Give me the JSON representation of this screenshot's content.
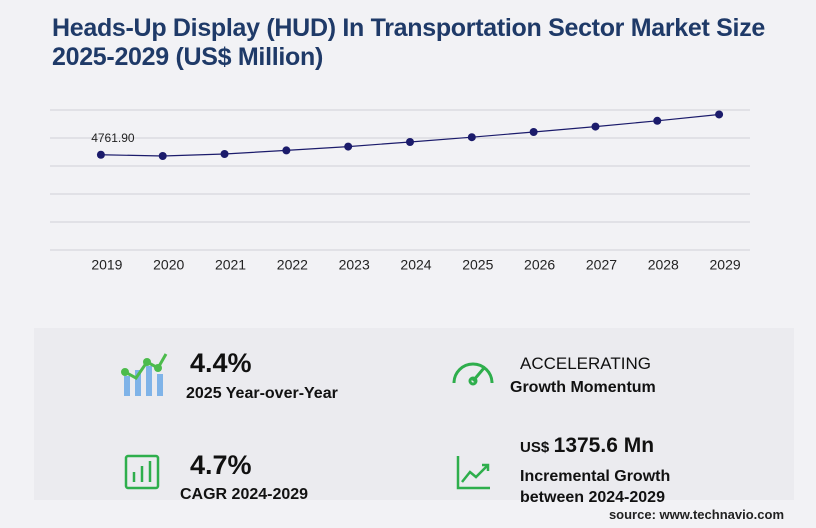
{
  "chart_data": {
    "type": "line",
    "title": "Heads-Up Display (HUD) In Transportation Sector Market Size 2025-2029 (US$ Million)",
    "categories": [
      "2019",
      "2020",
      "2021",
      "2022",
      "2023",
      "2024",
      "2025",
      "2026",
      "2027",
      "2028",
      "2029"
    ],
    "values": [
      4761.9,
      4700,
      4800,
      4980,
      5170,
      5400,
      5640,
      5900,
      6170,
      6460,
      6776
    ],
    "value_labels": [
      "4761.90",
      null,
      null,
      null,
      null,
      null,
      null,
      null,
      null,
      null,
      null
    ],
    "color": "#1b1b6b",
    "ylim": [
      0,
      7000
    ],
    "yticks": [
      0,
      1400,
      2800,
      4200,
      5600,
      7000
    ],
    "grid": true
  },
  "stats": [
    {
      "value": "4.4%",
      "label": "2025 Year-over-Year"
    },
    {
      "value": "ACCELERATING",
      "label": "Growth Momentum"
    },
    {
      "value": "4.7%",
      "label": "CAGR 2024-2029"
    },
    {
      "prefix": "US$",
      "value": "1375.6 Mn",
      "label": "Incremental Growth between 2024-2029"
    }
  ],
  "source": "source: www.technavio.com"
}
